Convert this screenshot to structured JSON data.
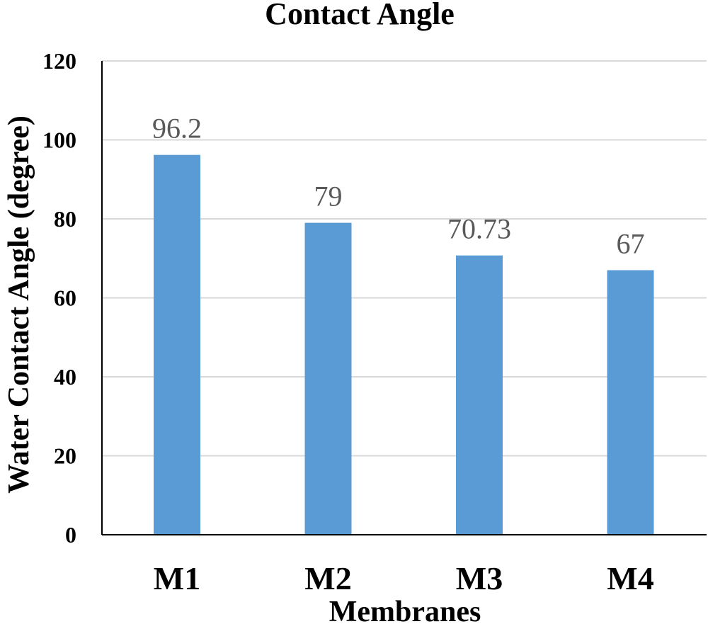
{
  "chart_data": {
    "type": "bar",
    "title": "Contact Angle",
    "xlabel": "Membranes",
    "ylabel": "Water Contact Angle (degree)",
    "categories": [
      "M1",
      "M2",
      "M3",
      "M4"
    ],
    "values": [
      96.2,
      79,
      70.73,
      67
    ],
    "data_labels": [
      "96.2",
      "79",
      "70.73",
      "67"
    ],
    "ylim": [
      0,
      120
    ],
    "yticks": [
      0,
      20,
      40,
      60,
      80,
      100,
      120
    ],
    "grid": true,
    "legend": "none",
    "bar_color": "#5B9BD5",
    "grid_color": "#D9D9D9",
    "label_color": "#595959"
  }
}
